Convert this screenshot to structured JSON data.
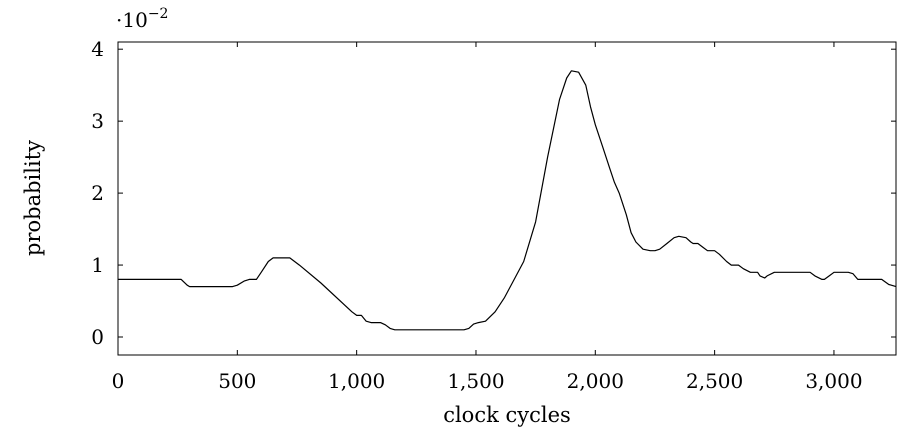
{
  "chart_data": {
    "type": "line",
    "title": "",
    "xlabel": "clock cycles",
    "ylabel": "probability",
    "y_scale_factor": "·10",
    "y_scale_exponent": "−2",
    "xlim": [
      0,
      3260
    ],
    "ylim": [
      -0.25,
      4.1
    ],
    "x_ticks": [
      0,
      500,
      1000,
      1500,
      2000,
      2500,
      3000
    ],
    "x_tick_labels": [
      "0",
      "500",
      "1,000",
      "1,500",
      "2,000",
      "2,500",
      "3,000"
    ],
    "y_ticks": [
      0,
      1,
      2,
      3,
      4
    ],
    "y_tick_labels": [
      "0",
      "1",
      "2",
      "3",
      "4"
    ],
    "grid": false,
    "series": [
      {
        "color": "#000000",
        "x": [
          0,
          250,
          265,
          290,
          300,
          480,
          500,
          530,
          550,
          580,
          600,
          630,
          650,
          700,
          720,
          760,
          850,
          980,
          1000,
          1020,
          1040,
          1060,
          1100,
          1120,
          1140,
          1160,
          1200,
          1300,
          1400,
          1440,
          1450,
          1470,
          1490,
          1510,
          1540,
          1580,
          1620,
          1660,
          1700,
          1750,
          1800,
          1850,
          1880,
          1900,
          1930,
          1960,
          1980,
          2000,
          2030,
          2060,
          2080,
          2100,
          2130,
          2150,
          2170,
          2200,
          2230,
          2250,
          2270,
          2300,
          2330,
          2350,
          2380,
          2400,
          2410,
          2430,
          2450,
          2470,
          2500,
          2520,
          2550,
          2570,
          2600,
          2620,
          2650,
          2680,
          2690,
          2710,
          2720,
          2750,
          2800,
          2850,
          2880,
          2900,
          2920,
          2950,
          2960,
          2980,
          3000,
          3020,
          3060,
          3080,
          3100,
          3130,
          3150,
          3170,
          3200,
          3230,
          3260
        ],
        "y": [
          0.8,
          0.8,
          0.8,
          0.72,
          0.7,
          0.7,
          0.72,
          0.78,
          0.8,
          0.8,
          0.9,
          1.05,
          1.1,
          1.1,
          1.1,
          1.0,
          0.75,
          0.35,
          0.3,
          0.3,
          0.22,
          0.2,
          0.2,
          0.17,
          0.12,
          0.1,
          0.1,
          0.1,
          0.1,
          0.1,
          0.1,
          0.12,
          0.18,
          0.2,
          0.22,
          0.35,
          0.55,
          0.8,
          1.05,
          1.6,
          2.5,
          3.3,
          3.6,
          3.7,
          3.68,
          3.5,
          3.2,
          2.95,
          2.65,
          2.35,
          2.15,
          2.0,
          1.7,
          1.45,
          1.32,
          1.22,
          1.2,
          1.2,
          1.22,
          1.3,
          1.38,
          1.4,
          1.38,
          1.32,
          1.3,
          1.3,
          1.25,
          1.2,
          1.2,
          1.15,
          1.05,
          1.0,
          1.0,
          0.95,
          0.9,
          0.9,
          0.85,
          0.82,
          0.85,
          0.9,
          0.9,
          0.9,
          0.9,
          0.9,
          0.85,
          0.8,
          0.8,
          0.85,
          0.9,
          0.9,
          0.9,
          0.88,
          0.8,
          0.8,
          0.8,
          0.8,
          0.8,
          0.73,
          0.7
        ]
      }
    ]
  }
}
